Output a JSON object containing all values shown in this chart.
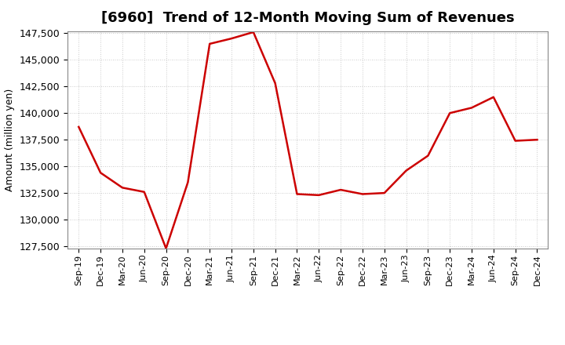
{
  "title": "[6960]  Trend of 12-Month Moving Sum of Revenues",
  "ylabel": "Amount (million yen)",
  "line_color": "#CC0000",
  "line_width": 1.8,
  "background_color": "#ffffff",
  "grid_color": "#bbbbbb",
  "xlabels": [
    "Sep-19",
    "Dec-19",
    "Mar-20",
    "Jun-20",
    "Sep-20",
    "Dec-20",
    "Mar-21",
    "Jun-21",
    "Sep-21",
    "Dec-21",
    "Mar-22",
    "Jun-22",
    "Sep-22",
    "Dec-22",
    "Mar-23",
    "Jun-23",
    "Sep-23",
    "Dec-23",
    "Mar-24",
    "Jun-24",
    "Sep-24",
    "Dec-24"
  ],
  "values": [
    138700,
    134400,
    133000,
    132600,
    127300,
    133500,
    146500,
    147000,
    147600,
    142800,
    132400,
    132300,
    132800,
    132400,
    132500,
    134600,
    136000,
    140000,
    140500,
    141500,
    137400,
    137500
  ],
  "ylim_min": 127500,
  "ylim_max": 147500,
  "yticks": [
    127500,
    130000,
    132500,
    135000,
    137500,
    140000,
    142500,
    145000,
    147500
  ],
  "title_fontsize": 13,
  "ylabel_fontsize": 9,
  "ytick_fontsize": 9,
  "xtick_fontsize": 8
}
